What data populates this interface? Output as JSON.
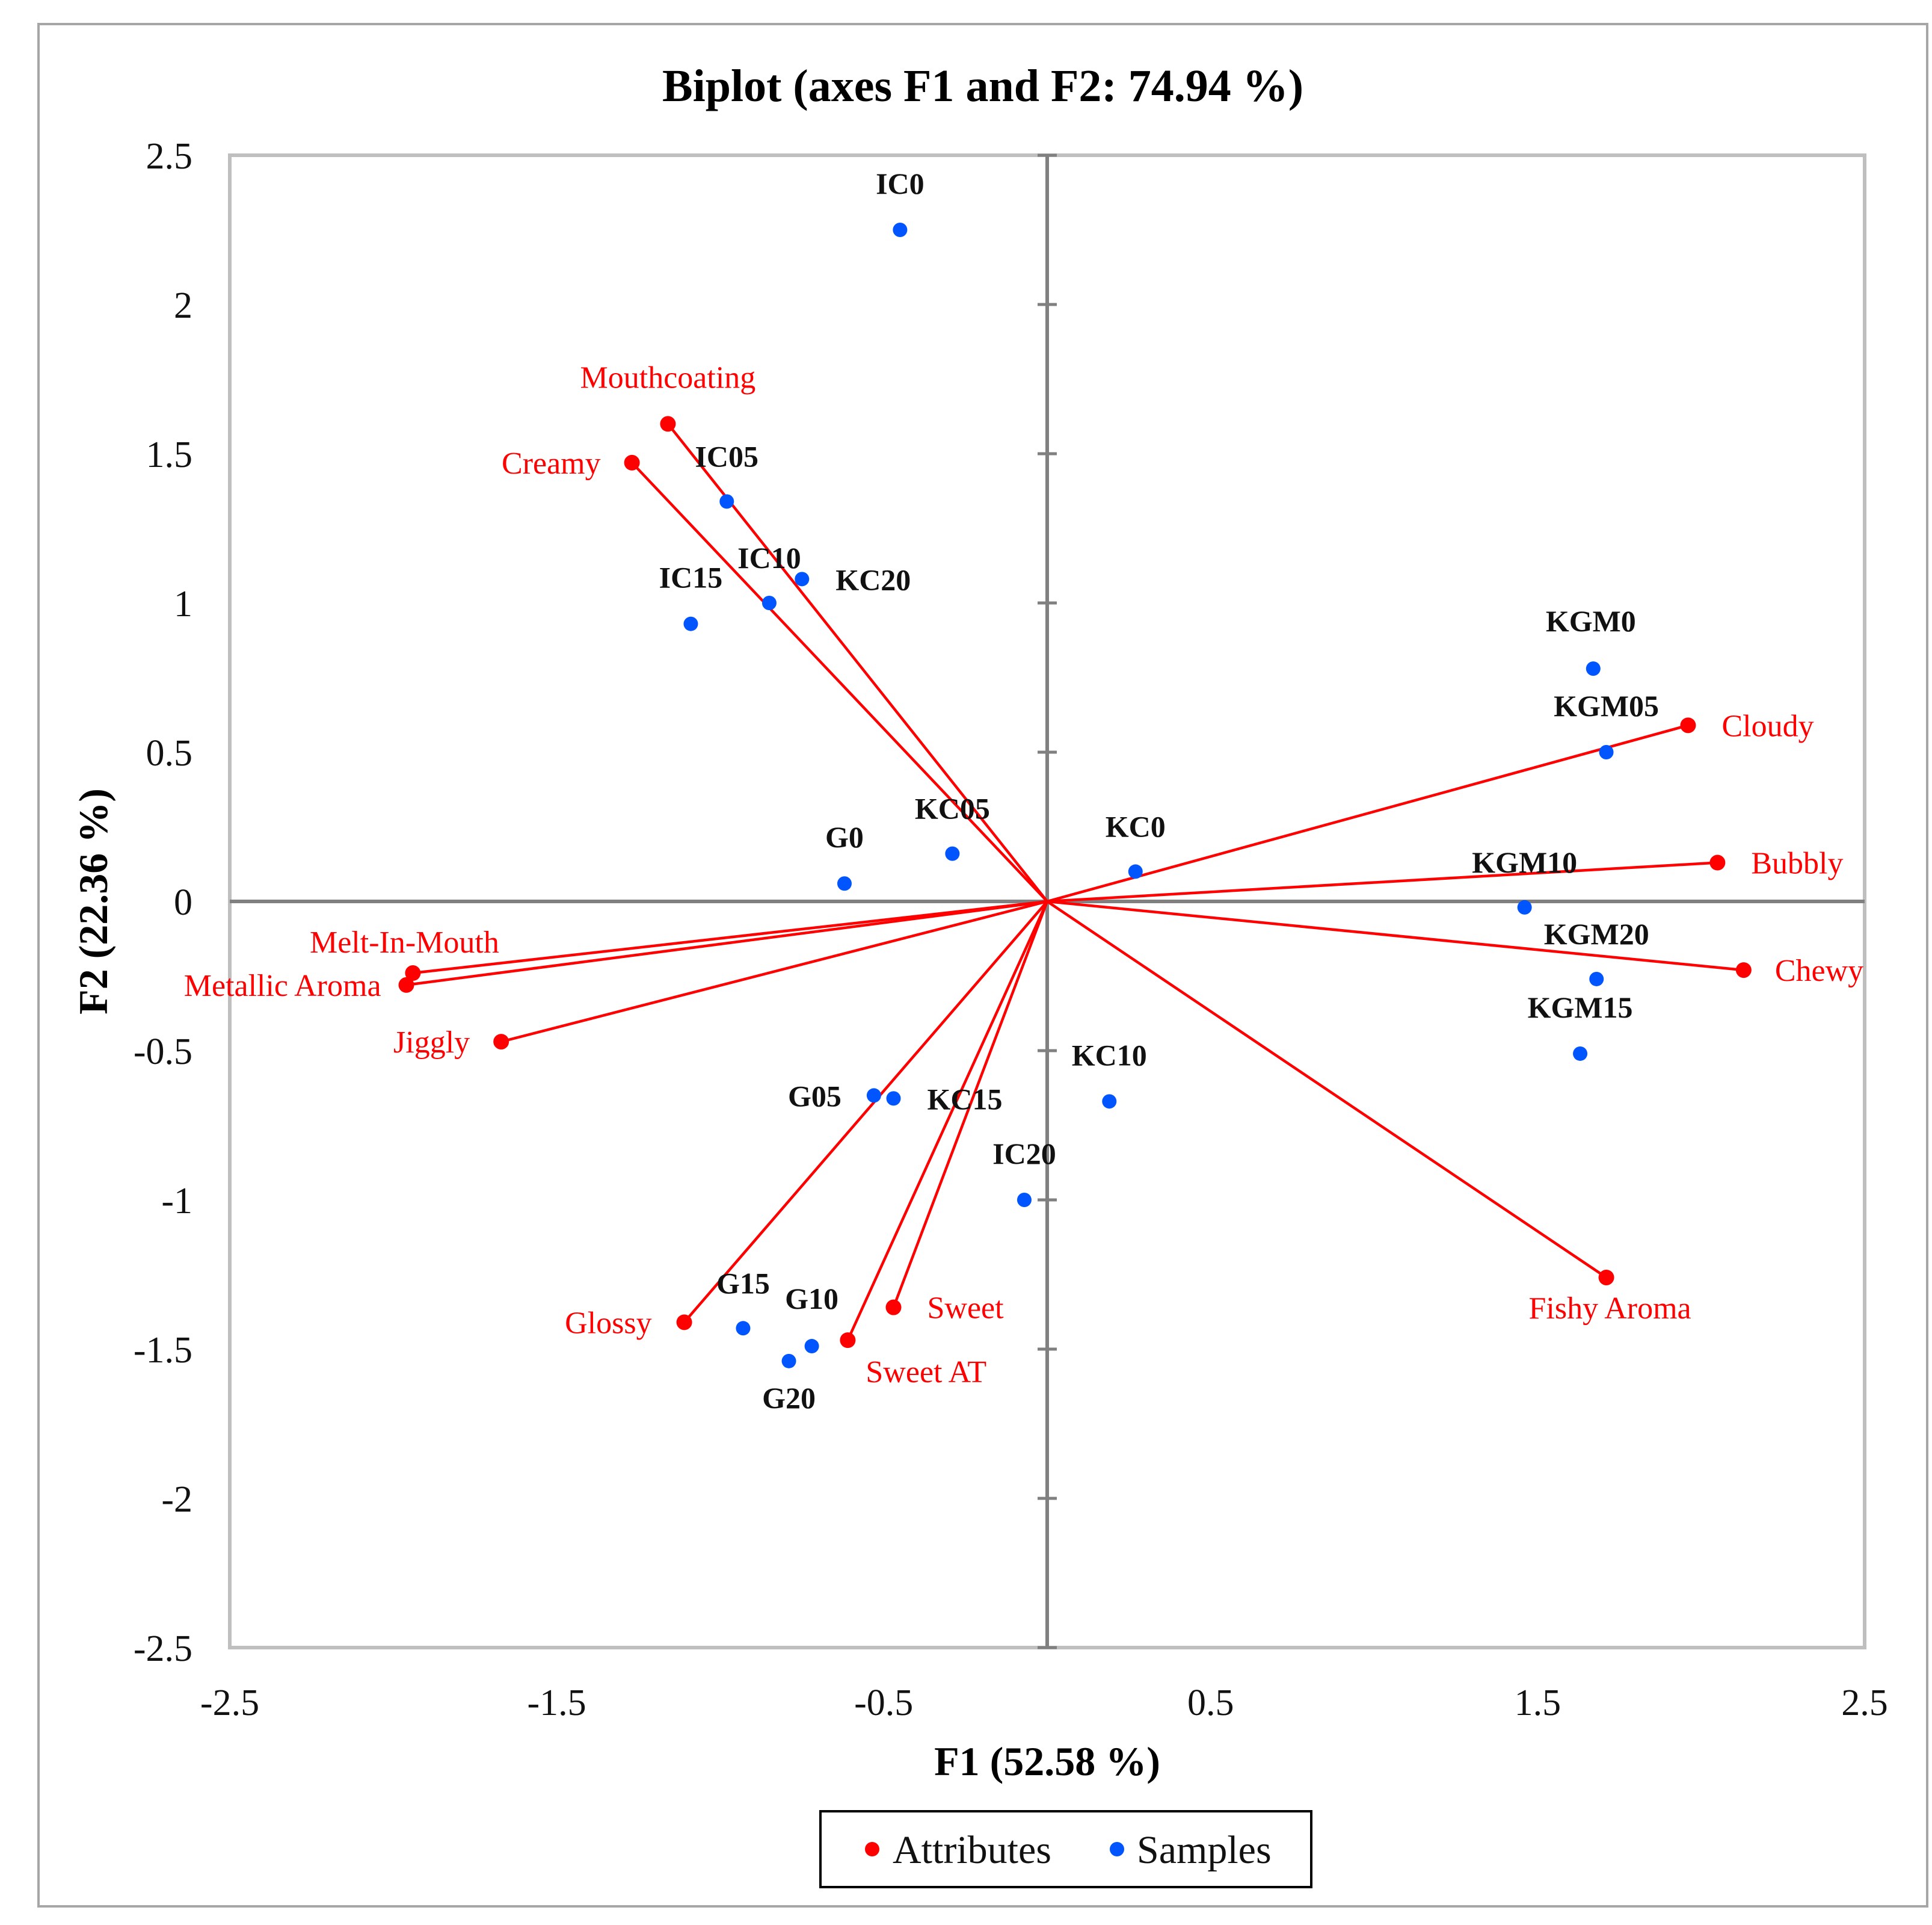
{
  "chart_data": {
    "type": "scatter",
    "title": "Biplot (axes F1 and F2: 74.94 %)",
    "xlabel": "F1 (52.58 %)",
    "ylabel": "F2 (22.36 %)",
    "xlim": [
      -2.5,
      2.5
    ],
    "ylim": [
      -2.5,
      2.5
    ],
    "x_ticks": [
      "-2.5",
      "-1.5",
      "-0.5",
      "0.5",
      "1.5",
      "2.5"
    ],
    "y_ticks": [
      "2.5",
      "2",
      "1.5",
      "1",
      "0.5",
      "0",
      "-0.5",
      "-1",
      "-1.5",
      "-2",
      "-2.5"
    ],
    "grid": false,
    "legend": [
      {
        "name": "Attributes",
        "color": "#ff0000"
      },
      {
        "name": "Samples",
        "color": "#0055ff"
      }
    ],
    "legend_position": "bottom-center",
    "colors": {
      "attributes": "#ff0000",
      "samples": "#0055ff",
      "axis": "#808080",
      "frame": "#bfbfbf"
    },
    "series": [
      {
        "name": "Attributes",
        "marker": "vector",
        "points": [
          {
            "label": "Mouthcoating",
            "x": -1.16,
            "y": 1.6
          },
          {
            "label": "Creamy",
            "x": -1.27,
            "y": 1.47
          },
          {
            "label": "Cloudy",
            "x": 1.96,
            "y": 0.59
          },
          {
            "label": "Bubbly",
            "x": 2.05,
            "y": 0.13
          },
          {
            "label": "Chewy",
            "x": 2.13,
            "y": -0.23
          },
          {
            "label": "Melt-In-Mouth",
            "x": -1.94,
            "y": -0.24
          },
          {
            "label": "Metallic Aroma",
            "x": -1.96,
            "y": -0.28
          },
          {
            "label": "Jiggly",
            "x": -1.67,
            "y": -0.47
          },
          {
            "label": "Fishy Aroma",
            "x": 1.71,
            "y": -1.26
          },
          {
            "label": "Sweet",
            "x": -0.47,
            "y": -1.36
          },
          {
            "label": "Sweet AT",
            "x": -0.61,
            "y": -1.47
          },
          {
            "label": "Glossy",
            "x": -1.11,
            "y": -1.41
          }
        ]
      },
      {
        "name": "Samples",
        "marker": "dot",
        "points": [
          {
            "label": "IC0",
            "x": -0.45,
            "y": 2.25
          },
          {
            "label": "IC05",
            "x": -0.98,
            "y": 1.34
          },
          {
            "label": "IC10",
            "x": -0.85,
            "y": 1.0
          },
          {
            "label": "KC20",
            "x": -0.75,
            "y": 1.08
          },
          {
            "label": "IC15",
            "x": -1.09,
            "y": 0.93
          },
          {
            "label": "KGM0",
            "x": 1.67,
            "y": 0.78
          },
          {
            "label": "KGM05",
            "x": 1.71,
            "y": 0.5
          },
          {
            "label": "KC05",
            "x": -0.29,
            "y": 0.16
          },
          {
            "label": "G0",
            "x": -0.62,
            "y": 0.06
          },
          {
            "label": "KC0",
            "x": 0.27,
            "y": 0.1
          },
          {
            "label": "KGM10",
            "x": 1.46,
            "y": -0.02
          },
          {
            "label": "KGM20",
            "x": 1.68,
            "y": -0.26
          },
          {
            "label": "KGM15",
            "x": 1.63,
            "y": -0.51
          },
          {
            "label": "KC10",
            "x": 0.19,
            "y": -0.67
          },
          {
            "label": "G05",
            "x": -0.53,
            "y": -0.65
          },
          {
            "label": "KC15",
            "x": -0.47,
            "y": -0.66
          },
          {
            "label": "IC20",
            "x": -0.07,
            "y": -1.0
          },
          {
            "label": "G15",
            "x": -0.93,
            "y": -1.43
          },
          {
            "label": "G10",
            "x": -0.72,
            "y": -1.49
          },
          {
            "label": "G20",
            "x": -0.79,
            "y": -1.54
          }
        ]
      }
    ]
  }
}
